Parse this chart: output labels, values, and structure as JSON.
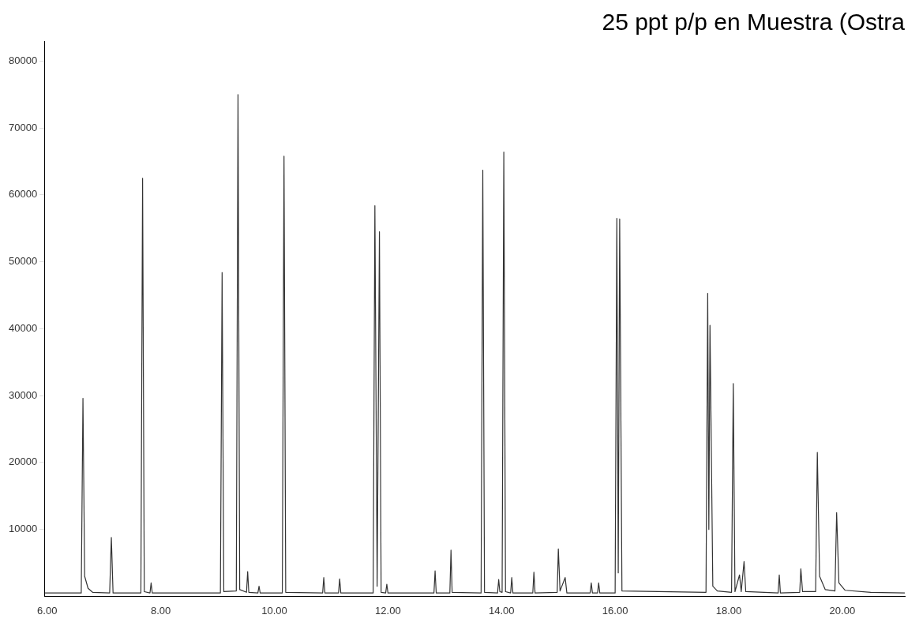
{
  "chart_data": {
    "type": "line",
    "title": "25 ppt p/p en Muestra (Ostra",
    "x": [
      5.96,
      6.6,
      6.63,
      6.66,
      6.72,
      6.8,
      7.1,
      7.13,
      7.16,
      7.65,
      7.68,
      7.71,
      7.81,
      7.83,
      7.85,
      9.05,
      9.08,
      9.11,
      9.33,
      9.36,
      9.39,
      9.51,
      9.53,
      9.55,
      9.71,
      9.73,
      9.75,
      10.14,
      10.17,
      10.2,
      10.85,
      10.87,
      10.89,
      11.13,
      11.15,
      11.17,
      11.74,
      11.77,
      11.81,
      11.85,
      11.88,
      11.96,
      11.98,
      12.0,
      12.81,
      12.83,
      12.85,
      13.09,
      13.11,
      13.13,
      13.64,
      13.67,
      13.7,
      13.93,
      13.95,
      13.97,
      14.01,
      14.04,
      14.07,
      14.16,
      14.18,
      14.2,
      14.55,
      14.57,
      14.59,
      14.98,
      15.0,
      15.03,
      15.12,
      15.15,
      15.56,
      15.58,
      15.6,
      15.69,
      15.71,
      15.73,
      16.0,
      16.03,
      16.055,
      16.08,
      16.12,
      17.6,
      17.63,
      17.65,
      17.67,
      17.72,
      17.8,
      18.05,
      18.08,
      18.11,
      18.19,
      18.22,
      18.27,
      18.3,
      18.87,
      18.89,
      18.91,
      19.25,
      19.27,
      19.3,
      19.53,
      19.56,
      19.6,
      19.7,
      19.87,
      19.9,
      19.94,
      20.05,
      20.5,
      21.1
    ],
    "series": [
      {
        "color": "#333333",
        "values": [
          500,
          500,
          29600,
          3000,
          1200,
          600,
          500,
          8800,
          500,
          500,
          62500,
          700,
          500,
          2000,
          500,
          500,
          48400,
          700,
          800,
          75000,
          1000,
          600,
          3700,
          600,
          500,
          1500,
          500,
          500,
          65800,
          600,
          500,
          2800,
          500,
          500,
          2600,
          500,
          500,
          58400,
          1500,
          54500,
          600,
          500,
          1800,
          500,
          500,
          3800,
          500,
          500,
          6900,
          600,
          500,
          63700,
          600,
          500,
          2500,
          700,
          600,
          66400,
          700,
          500,
          2800,
          500,
          500,
          3600,
          500,
          600,
          7100,
          800,
          2800,
          500,
          500,
          2000,
          500,
          500,
          2000,
          500,
          500,
          56500,
          3500,
          56400,
          800,
          600,
          45300,
          10000,
          40500,
          1500,
          800,
          600,
          31800,
          700,
          3200,
          700,
          5200,
          700,
          500,
          3200,
          500,
          600,
          4100,
          700,
          700,
          21500,
          3000,
          1000,
          800,
          12500,
          2000,
          900,
          600,
          500
        ]
      }
    ],
    "xlim": [
      5.95,
      21.1
    ],
    "ylim": [
      0,
      83000
    ],
    "xticks": [
      {
        "value": 6,
        "label": "6.00"
      },
      {
        "value": 8,
        "label": "8.00"
      },
      {
        "value": 10,
        "label": "10.00"
      },
      {
        "value": 12,
        "label": "12.00"
      },
      {
        "value": 14,
        "label": "14.00"
      },
      {
        "value": 16,
        "label": "16.00"
      },
      {
        "value": 18,
        "label": "18.00"
      },
      {
        "value": 20,
        "label": "20.00"
      }
    ],
    "yticks": [
      10000,
      20000,
      30000,
      40000,
      50000,
      60000,
      70000,
      80000
    ],
    "grid": false,
    "legend": false,
    "marker": "none",
    "line_style": "solid"
  }
}
